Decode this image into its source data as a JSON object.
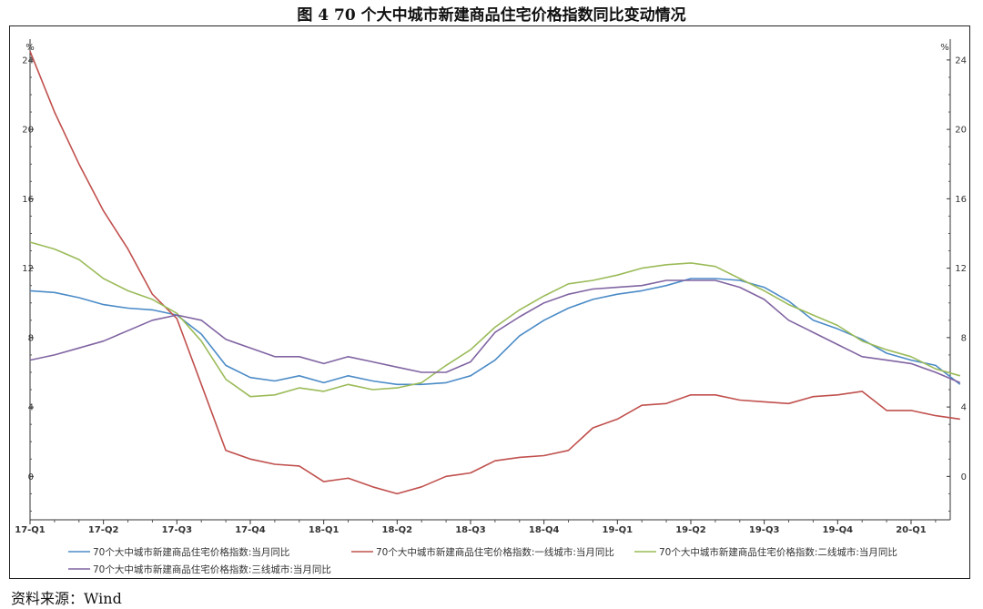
{
  "figure": {
    "title": "图 4    70 个大中城市新建商品住宅价格指数同比变动情况",
    "source": "资料来源：Wind"
  },
  "chart_data": {
    "type": "line",
    "title": "70个大中城市新建商品住宅价格指数同比变动情况",
    "ylabel_left": "%",
    "ylabel_right": "%",
    "ylim": [
      -2.5,
      25.2
    ],
    "yticks": [
      0,
      4,
      8,
      12,
      16,
      20,
      24
    ],
    "x_tick_labels": [
      "17-Q1",
      "17-Q2",
      "17-Q3",
      "17-Q4",
      "18-Q1",
      "18-Q2",
      "18-Q3",
      "18-Q4",
      "19-Q1",
      "19-Q2",
      "19-Q3",
      "19-Q4",
      "20-Q1"
    ],
    "x_tick_month_index": [
      0,
      3,
      6,
      9,
      12,
      15,
      18,
      21,
      24,
      27,
      30,
      33,
      36
    ],
    "x_months": [
      "2017-01",
      "2017-02",
      "2017-03",
      "2017-04",
      "2017-05",
      "2017-06",
      "2017-07",
      "2017-08",
      "2017-09",
      "2017-10",
      "2017-11",
      "2017-12",
      "2018-01",
      "2018-02",
      "2018-03",
      "2018-04",
      "2018-05",
      "2018-06",
      "2018-07",
      "2018-08",
      "2018-09",
      "2018-10",
      "2018-11",
      "2018-12",
      "2019-01",
      "2019-02",
      "2019-03",
      "2019-04",
      "2019-05",
      "2019-06",
      "2019-07",
      "2019-08",
      "2019-09",
      "2019-10",
      "2019-11",
      "2019-12",
      "2020-01",
      "2020-02",
      "2020-03"
    ],
    "x_range": [
      0,
      37.6
    ],
    "grid": false,
    "legend_position": "bottom",
    "series": [
      {
        "name": "70个大中城市新建商品住宅价格指数:当月同比",
        "color": "#4b8bc7",
        "values": [
          10.7,
          10.6,
          10.3,
          9.9,
          9.7,
          9.6,
          9.3,
          8.2,
          6.4,
          5.7,
          5.5,
          5.8,
          5.4,
          5.8,
          5.5,
          5.3,
          5.3,
          5.4,
          5.8,
          6.7,
          8.1,
          9.0,
          9.7,
          10.2,
          10.5,
          10.7,
          11.0,
          11.4,
          11.4,
          11.3,
          10.9,
          10.1,
          9.0,
          8.5,
          7.9,
          7.1,
          6.7,
          6.4,
          5.3
        ]
      },
      {
        "name": "70个大中城市新建商品住宅价格指数:一线城市:当月同比",
        "color": "#c0504d",
        "values": [
          24.5,
          21.0,
          18.0,
          15.3,
          13.1,
          10.5,
          9.1,
          5.3,
          1.5,
          1.0,
          0.7,
          0.6,
          -0.3,
          -0.1,
          -0.6,
          -1.0,
          -0.6,
          0.0,
          0.2,
          0.9,
          1.1,
          1.2,
          1.5,
          2.8,
          3.3,
          4.1,
          4.2,
          4.7,
          4.7,
          4.4,
          4.3,
          4.2,
          4.6,
          4.7,
          4.9,
          3.8,
          3.8,
          3.5,
          3.3
        ]
      },
      {
        "name": "70个大中城市新建商品住宅价格指数:二线城市:当月同比",
        "color": "#9bbb59",
        "values": [
          13.5,
          13.1,
          12.5,
          11.4,
          10.7,
          10.2,
          9.4,
          7.8,
          5.6,
          4.6,
          4.7,
          5.1,
          4.9,
          5.3,
          5.0,
          5.1,
          5.4,
          6.4,
          7.3,
          8.6,
          9.6,
          10.4,
          11.1,
          11.3,
          11.6,
          12.0,
          12.2,
          12.3,
          12.1,
          11.4,
          10.7,
          9.9,
          9.3,
          8.7,
          7.8,
          7.3,
          6.9,
          6.2,
          5.8
        ]
      },
      {
        "name": "70个大中城市新建商品住宅价格指数:三线城市:当月同比",
        "color": "#8064a2",
        "values": [
          6.7,
          7.0,
          7.4,
          7.8,
          8.4,
          9.0,
          9.3,
          9.0,
          7.9,
          7.4,
          6.9,
          6.9,
          6.5,
          6.9,
          6.6,
          6.3,
          6.0,
          6.0,
          6.6,
          8.3,
          9.2,
          10.0,
          10.5,
          10.8,
          10.9,
          11.0,
          11.3,
          11.3,
          11.3,
          10.9,
          10.2,
          9.0,
          8.3,
          7.6,
          6.9,
          6.7,
          6.5,
          6.0,
          5.4
        ]
      }
    ]
  }
}
